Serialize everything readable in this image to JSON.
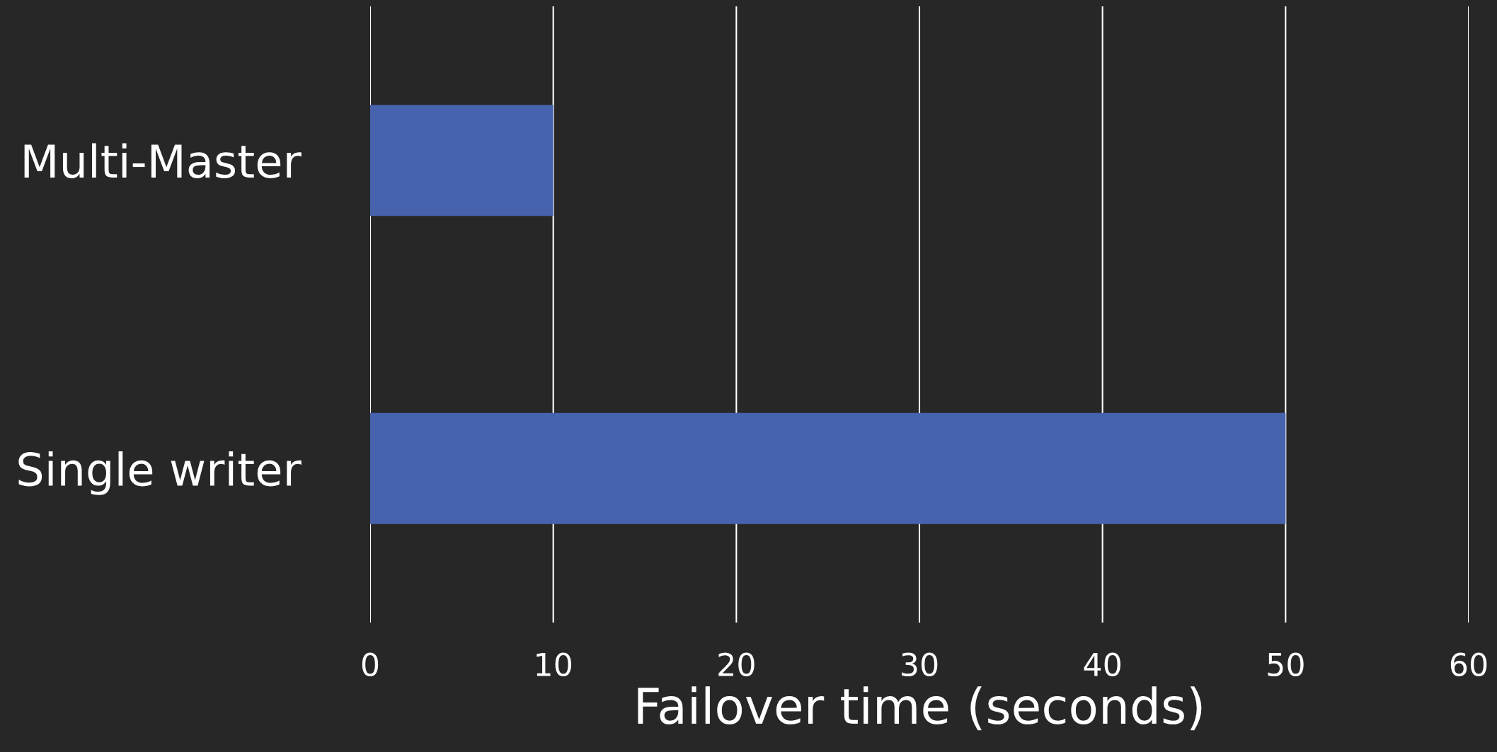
{
  "chart_data": {
    "type": "bar",
    "orientation": "horizontal",
    "xlabel": "Failover time (seconds)",
    "categories": [
      "Multi-Master",
      "Single writer"
    ],
    "values": [
      10,
      50
    ],
    "color": "#4763ad",
    "xlim": [
      0,
      60
    ],
    "xticks": [
      0,
      10,
      20,
      30,
      40,
      50,
      60
    ],
    "grid": "x",
    "legend": false
  }
}
